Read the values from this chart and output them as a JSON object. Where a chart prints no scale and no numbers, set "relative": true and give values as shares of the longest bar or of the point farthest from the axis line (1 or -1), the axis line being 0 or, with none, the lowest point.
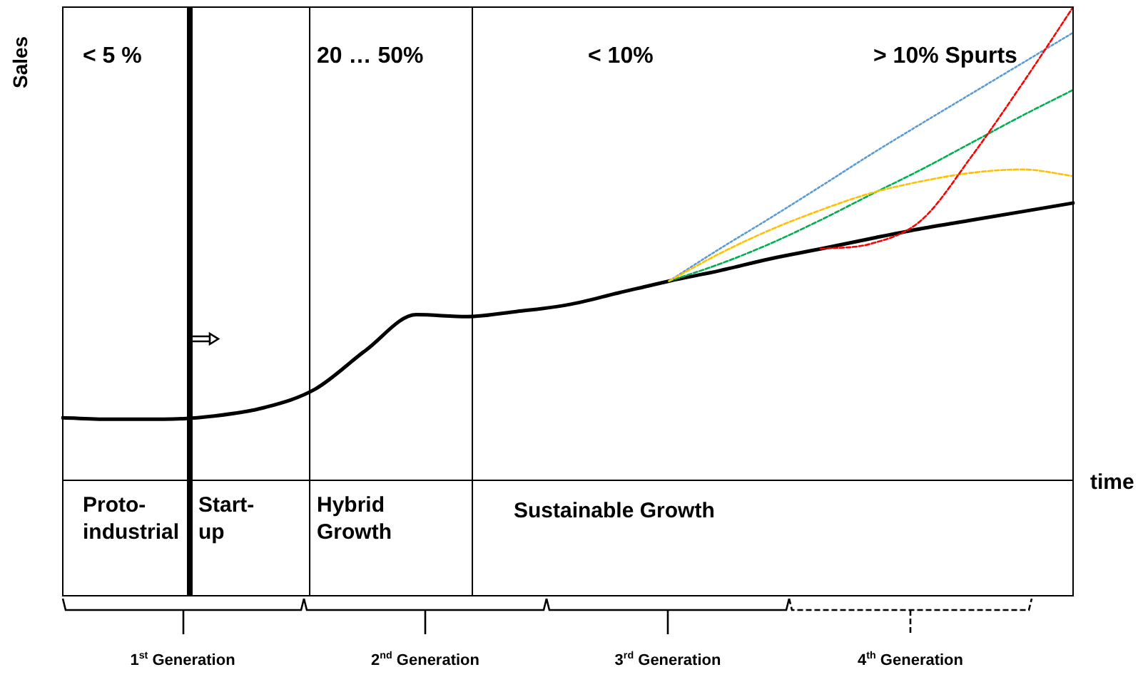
{
  "chart_data": {
    "type": "line",
    "relative": true,
    "ylabel": "Sales",
    "xlabel": "time",
    "categories": [
      null,
      null,
      null,
      null,
      null,
      null,
      null,
      null,
      null,
      null,
      null,
      null,
      null,
      null,
      null,
      null,
      null,
      null,
      null,
      null,
      null
    ],
    "series": [
      {
        "color": "#000000",
        "line_style": "solid",
        "values": [
          0.132,
          0.129,
          0.129,
          0.136,
          0.154,
          0.193,
          0.275,
          0.35,
          0.346,
          0.357,
          0.371,
          0.396,
          0.421,
          0.443,
          0.468,
          0.489,
          0.511,
          0.532,
          0.55,
          0.568,
          0.586
        ]
      },
      {
        "color": "#5b9bd5",
        "line_style": "dotted",
        "values": [
          null,
          null,
          null,
          null,
          null,
          null,
          null,
          null,
          null,
          null,
          null,
          null,
          0.421,
          0.489,
          0.554,
          0.621,
          0.689,
          0.754,
          0.818,
          0.882,
          0.946
        ]
      },
      {
        "color": "#00b050",
        "line_style": "dashed",
        "values": [
          null,
          null,
          null,
          null,
          null,
          null,
          null,
          null,
          null,
          null,
          null,
          null,
          0.421,
          0.457,
          0.5,
          0.55,
          0.604,
          0.657,
          0.714,
          0.771,
          0.825
        ]
      },
      {
        "color": "#ffc000",
        "line_style": "dashed",
        "values": [
          null,
          null,
          null,
          null,
          null,
          null,
          null,
          null,
          null,
          null,
          null,
          null,
          0.421,
          0.479,
          0.529,
          0.571,
          0.607,
          0.632,
          0.65,
          0.657,
          0.643
        ]
      },
      {
        "color": "#ff0000",
        "line_style": "dashed",
        "values": [
          null,
          null,
          null,
          null,
          null,
          null,
          null,
          null,
          null,
          null,
          null,
          null,
          null,
          null,
          null,
          0.489,
          0.5,
          0.55,
          0.686,
          0.839,
          1
        ]
      }
    ],
    "annotations": [
      "< 5 %",
      "20 … 50%",
      "< 10%",
      "> 10% Spurts",
      "Proto-industrial",
      "Start-up",
      "Hybrid Growth",
      "Sustainable Growth",
      "1$^{st}$ Generation",
      "2$^{nd}$ Generation",
      "3$^{rd}$ Generation",
      "4$^{th}$ Generation"
    ],
    "grid": false,
    "legend": false,
    "marker": "none",
    "tick_labels": false
  }
}
